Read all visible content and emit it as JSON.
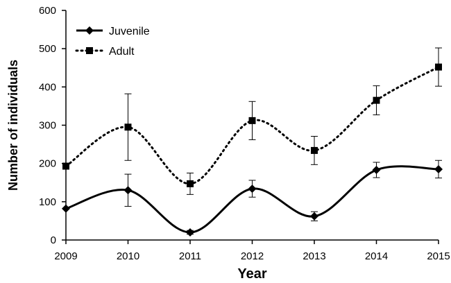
{
  "chart_data": {
    "type": "line",
    "title": "",
    "xlabel": "Year",
    "ylabel": "Number of individuals",
    "x": [
      2009,
      2010,
      2011,
      2012,
      2013,
      2014,
      2015
    ],
    "xlim": [
      2009,
      2015
    ],
    "ylim": [
      0,
      600
    ],
    "yticks": [
      0,
      100,
      200,
      300,
      400,
      500,
      600
    ],
    "grid": false,
    "legend_position": "top-left",
    "series": [
      {
        "name": "Juvenile",
        "marker": "diamond",
        "line_style": "solid",
        "color": "#000000",
        "values": [
          82,
          130,
          20,
          134,
          62,
          183,
          185
        ],
        "error": [
          null,
          42,
          5,
          22,
          12,
          20,
          23
        ]
      },
      {
        "name": "Adult",
        "marker": "square",
        "line_style": "dotted",
        "color": "#000000",
        "values": [
          193,
          295,
          147,
          312,
          234,
          365,
          452
        ],
        "error": [
          null,
          87,
          28,
          50,
          37,
          38,
          50
        ]
      }
    ]
  }
}
